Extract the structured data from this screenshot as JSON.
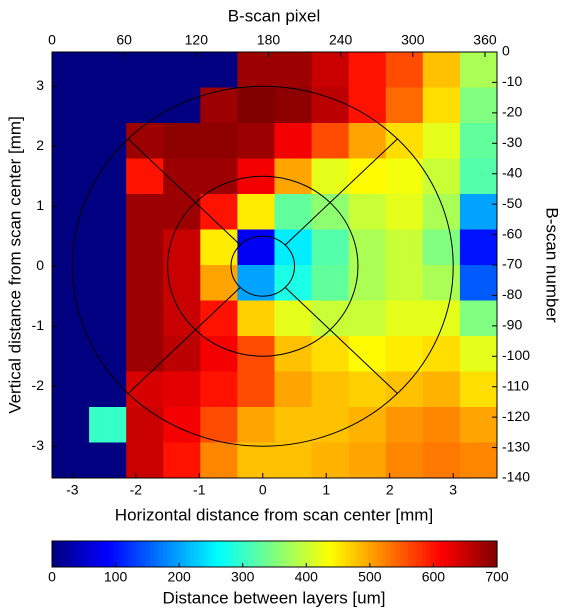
{
  "chart_data": {
    "type": "heatmap",
    "xlabel": "Horizontal distance from scan center [mm]",
    "ylabel": "Vertical distance from scan center [mm]",
    "x2label": "B-scan pixel",
    "y2label": "B-scan number",
    "xlim": [
      -3.32,
      3.69
    ],
    "xticks": [
      -3,
      -2,
      -1,
      0,
      1,
      2,
      3
    ],
    "ylim": [
      -3.53,
      3.57
    ],
    "yticks": [
      -3,
      -2,
      -1,
      0,
      1,
      2,
      3
    ],
    "x2lim": [
      0,
      370
    ],
    "x2ticks": [
      0,
      60,
      120,
      180,
      240,
      300,
      360
    ],
    "y2lim": [
      -140,
      0
    ],
    "y2ticks": [
      0,
      -10,
      -20,
      -30,
      -40,
      -50,
      -60,
      -70,
      -80,
      -90,
      -100,
      -110,
      -120,
      -130,
      -140
    ],
    "colormap": "jet",
    "z": [
      [
        0,
        0,
        0,
        0,
        0,
        680,
        680,
        650,
        600,
        560,
        480,
        380
      ],
      [
        0,
        0,
        0,
        0,
        680,
        700,
        690,
        660,
        600,
        540,
        460,
        350
      ],
      [
        0,
        0,
        680,
        690,
        690,
        680,
        620,
        560,
        500,
        460,
        420,
        330
      ],
      [
        0,
        0,
        600,
        680,
        680,
        620,
        500,
        420,
        440,
        430,
        400,
        320
      ],
      [
        0,
        0,
        680,
        680,
        600,
        450,
        330,
        360,
        400,
        420,
        380,
        200
      ],
      [
        0,
        0,
        680,
        650,
        450,
        80,
        250,
        320,
        380,
        400,
        350,
        100
      ],
      [
        0,
        0,
        680,
        650,
        500,
        200,
        280,
        330,
        380,
        400,
        380,
        150
      ],
      [
        0,
        0,
        680,
        650,
        600,
        470,
        420,
        400,
        400,
        420,
        420,
        350
      ],
      [
        0,
        0,
        680,
        660,
        620,
        560,
        480,
        460,
        440,
        450,
        460,
        420
      ],
      [
        0,
        0,
        640,
        630,
        600,
        560,
        500,
        480,
        470,
        480,
        490,
        460
      ],
      [
        0,
        300,
        650,
        620,
        560,
        500,
        480,
        480,
        490,
        510,
        520,
        500
      ],
      [
        0,
        0,
        650,
        600,
        520,
        480,
        480,
        490,
        500,
        520,
        530,
        520
      ]
    ],
    "colorbar": {
      "label": "Distance between layers [um]",
      "lim": [
        0,
        700
      ],
      "ticks": [
        0,
        100,
        200,
        300,
        400,
        500,
        600,
        700
      ]
    }
  }
}
